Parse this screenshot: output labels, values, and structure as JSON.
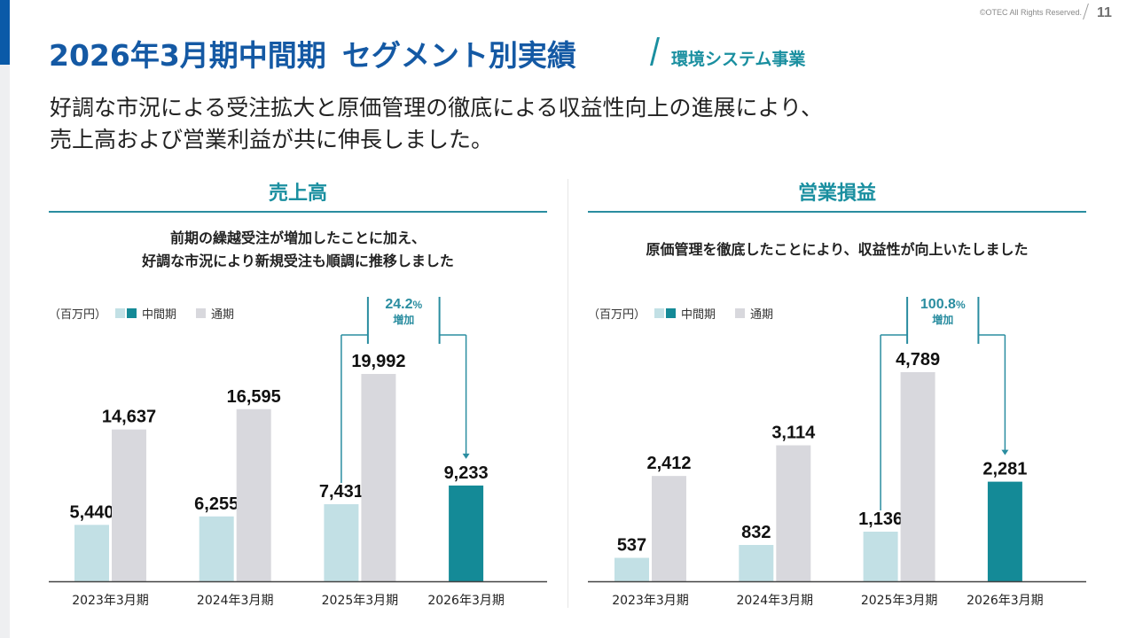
{
  "header": {
    "copyright": "©OTEC All Rights Reserved.",
    "page_number": "11",
    "title_part1": "2026年3月期中間期",
    "title_part2": "セグメント別実績",
    "segment": "環境システム事業"
  },
  "lead": {
    "line1": "好調な市況による受注拡大と原価管理の徹底による収益性向上の進展により、",
    "line2": "売上高および営業利益が共に伸長しました。"
  },
  "colors": {
    "interim_past": "#c2e0e5",
    "interim_current": "#148a97",
    "full_year": "#d8d8dd",
    "accent": "#2a8da0",
    "title": "#1459a4"
  },
  "legend": {
    "unit": "（百万円）",
    "interim": "中間期",
    "full_year": "通期"
  },
  "sections": [
    {
      "heading": "売上高",
      "desc_line1": "前期の繰越受注が増加したことに加え、",
      "desc_line2": "好調な市況により新規受注も順調に推移しました"
    },
    {
      "heading": "営業損益",
      "desc_line1": "原価管理を徹底したことにより、収益性が向上いたしました",
      "desc_line2": ""
    }
  ],
  "chart_data": [
    {
      "type": "bar",
      "title": "売上高",
      "unit": "百万円",
      "categories": [
        "2023年3月期",
        "2024年3月期",
        "2025年3月期",
        "2026年3月期"
      ],
      "series": [
        {
          "name": "中間期",
          "values": [
            5440,
            6255,
            7431,
            9233
          ],
          "labels": [
            "5,440",
            "6,255",
            "7,431",
            "9,233"
          ]
        },
        {
          "name": "通期",
          "values": [
            14637,
            16595,
            19992,
            null
          ],
          "labels": [
            "14,637",
            "16,595",
            "19,992",
            ""
          ]
        }
      ],
      "annotation": {
        "from": "2025年3月期 中間期",
        "to": "2026年3月期 中間期",
        "percent": "24.2",
        "percent_sign": "%",
        "text": "増加"
      },
      "ylim": [
        0,
        20000
      ],
      "grid": false,
      "legend": "top-left"
    },
    {
      "type": "bar",
      "title": "営業損益",
      "unit": "百万円",
      "categories": [
        "2023年3月期",
        "2024年3月期",
        "2025年3月期",
        "2026年3月期"
      ],
      "series": [
        {
          "name": "中間期",
          "values": [
            537,
            832,
            1136,
            2281
          ],
          "labels": [
            "537",
            "832",
            "1,136",
            "2,281"
          ]
        },
        {
          "name": "通期",
          "values": [
            2412,
            3114,
            4789,
            null
          ],
          "labels": [
            "2,412",
            "3,114",
            "4,789",
            ""
          ]
        }
      ],
      "annotation": {
        "from": "2025年3月期 中間期",
        "to": "2026年3月期 中間期",
        "percent": "100.8",
        "percent_sign": "%",
        "text": "増加"
      },
      "ylim": [
        0,
        4789
      ],
      "grid": false,
      "legend": "top-left"
    }
  ]
}
